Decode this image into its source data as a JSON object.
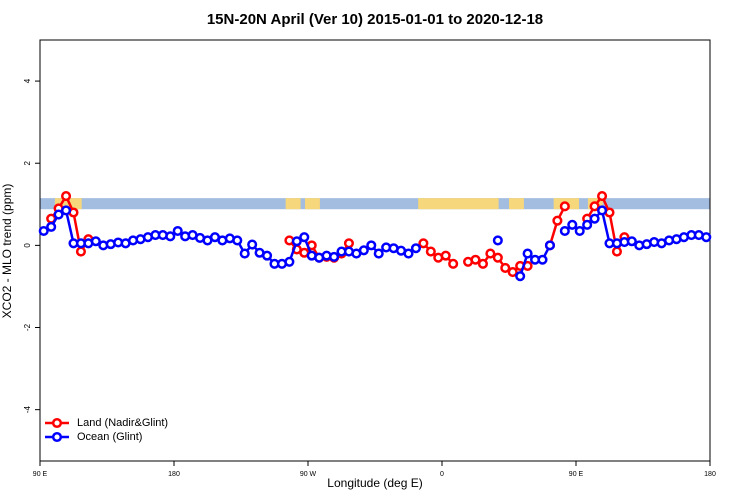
{
  "chart_data": {
    "type": "line",
    "title": "15N-20N April (Ver 10)   2015-01-01 to 2020-12-18",
    "x_label": "Longitude (deg E)",
    "y_label": "XCO2 - MLO trend (ppm)",
    "xlim": [
      90,
      540
    ],
    "ylim": [
      -5.25,
      5
    ],
    "xticks": [
      {
        "value": 90,
        "label": "90 E"
      },
      {
        "value": 180,
        "label": "180"
      },
      {
        "value": 270,
        "label": "90 W"
      },
      {
        "value": 360,
        "label": "0"
      },
      {
        "value": 450,
        "label": "90 E"
      },
      {
        "value": 540,
        "label": "180"
      }
    ],
    "yticks": [
      -4,
      -2,
      0,
      2,
      4
    ],
    "legend": "bottom-left",
    "land_mask": {
      "y_range": [
        0.88,
        1.15
      ],
      "ocean_color": "#a3bde0",
      "land_color": "#f6d77b",
      "land_lon_ranges": [
        [
          100,
          118
        ],
        [
          255,
          265
        ],
        [
          268,
          278
        ],
        [
          344,
          398
        ],
        [
          405,
          415
        ],
        [
          435,
          452
        ],
        [
          458,
          468
        ]
      ]
    },
    "x": [
      92.5,
      97.5,
      102.5,
      107.5,
      112.5,
      117.5,
      122.5,
      127.5,
      132.5,
      137.5,
      142.5,
      147.5,
      152.5,
      157.5,
      162.5,
      167.5,
      172.5,
      177.5,
      182.5,
      187.5,
      192.5,
      197.5,
      202.5,
      207.5,
      212.5,
      217.5,
      222.5,
      227.5,
      232.5,
      237.5,
      242.5,
      247.5,
      252.5,
      257.5,
      262.5,
      267.5,
      272.5,
      277.5,
      282.5,
      287.5,
      292.5,
      297.5,
      302.5,
      307.5,
      312.5,
      317.5,
      322.5,
      327.5,
      332.5,
      337.5,
      342.5,
      347.5,
      352.5,
      357.5,
      362.5,
      367.5,
      372.5,
      377.5,
      382.5,
      387.5,
      392.5,
      397.5,
      402.5,
      407.5,
      412.5,
      417.5,
      422.5,
      427.5,
      432.5,
      437.5,
      442.5,
      447.5,
      452.5,
      457.5,
      462.5,
      467.5,
      472.5,
      477.5,
      482.5,
      487.5,
      492.5,
      497.5,
      502.5,
      507.5,
      512.5,
      517.5,
      522.5,
      527.5,
      532.5,
      537.5
    ],
    "series": [
      {
        "name": "Land (Nadir&Glint)",
        "color": "#ff0000",
        "values": [
          null,
          0.65,
          0.9,
          1.2,
          0.8,
          -0.15,
          0.15,
          null,
          null,
          null,
          null,
          null,
          null,
          null,
          null,
          null,
          null,
          null,
          null,
          null,
          null,
          null,
          null,
          null,
          null,
          null,
          null,
          null,
          null,
          null,
          null,
          null,
          null,
          0.12,
          -0.1,
          -0.18,
          0.0,
          -0.3,
          -0.28,
          -0.3,
          -0.2,
          0.05,
          null,
          null,
          null,
          null,
          null,
          null,
          null,
          null,
          null,
          0.05,
          -0.15,
          -0.3,
          -0.25,
          -0.45,
          null,
          -0.4,
          -0.35,
          -0.45,
          -0.2,
          -0.3,
          -0.55,
          -0.65,
          -0.5,
          -0.5,
          null,
          null,
          0.0,
          0.6,
          0.95,
          null,
          null,
          0.65,
          0.95,
          1.2,
          0.8,
          -0.15,
          0.2,
          null,
          null,
          null,
          null,
          null,
          null,
          null,
          null,
          null,
          null,
          null
        ]
      },
      {
        "name": "Ocean (Glint)",
        "color": "#0000ff",
        "values": [
          0.35,
          0.45,
          0.75,
          0.85,
          0.05,
          0.05,
          0.05,
          0.1,
          0.0,
          0.03,
          0.07,
          0.05,
          0.12,
          0.15,
          0.2,
          0.25,
          0.25,
          0.22,
          0.35,
          0.22,
          0.25,
          0.18,
          0.12,
          0.2,
          0.12,
          0.17,
          0.12,
          -0.2,
          0.02,
          -0.18,
          -0.25,
          -0.45,
          -0.45,
          -0.4,
          0.1,
          0.2,
          -0.25,
          -0.3,
          -0.25,
          -0.28,
          -0.15,
          -0.15,
          -0.2,
          -0.12,
          0.0,
          -0.2,
          -0.05,
          -0.07,
          -0.13,
          -0.2,
          -0.07,
          null,
          null,
          null,
          null,
          null,
          null,
          null,
          null,
          null,
          null,
          0.12,
          null,
          null,
          -0.75,
          -0.2,
          -0.35,
          -0.35,
          0.0,
          null,
          0.35,
          0.5,
          0.35,
          0.5,
          0.65,
          0.85,
          0.05,
          0.05,
          0.08,
          0.1,
          0.0,
          0.03,
          0.08,
          0.05,
          0.12,
          0.15,
          0.2,
          0.25,
          0.25,
          0.2
        ]
      }
    ]
  }
}
